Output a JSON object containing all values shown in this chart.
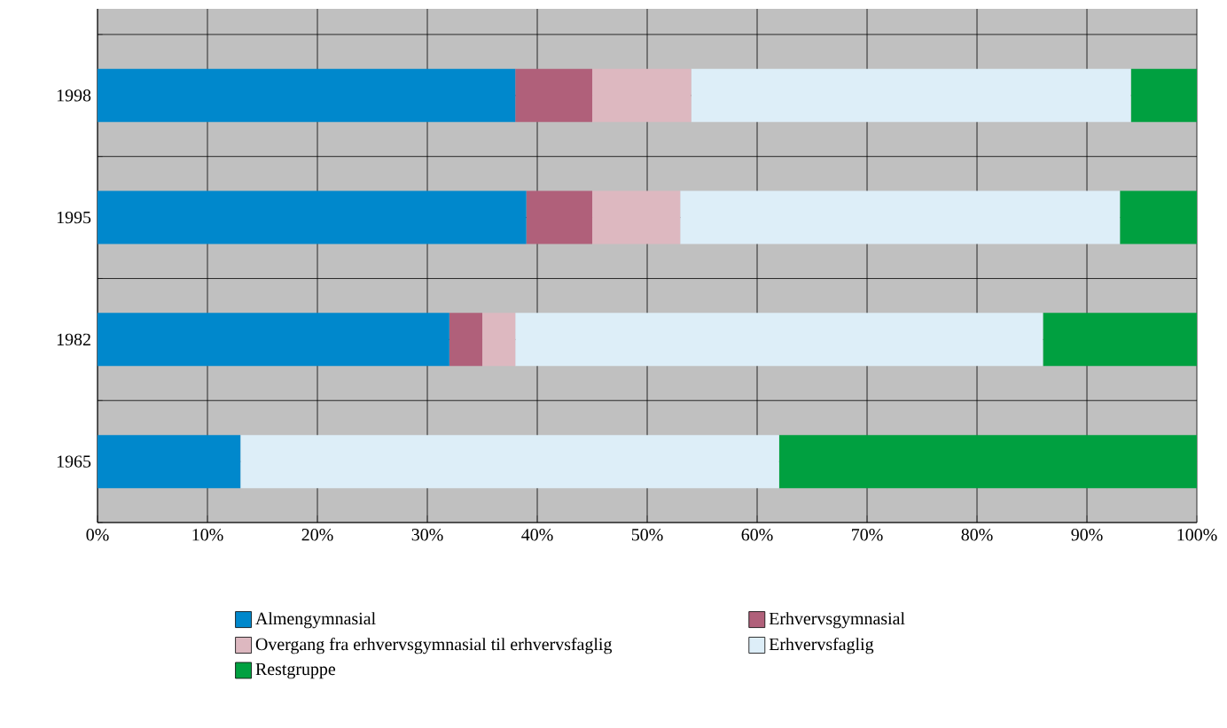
{
  "chart_data": {
    "type": "bar",
    "orientation": "horizontal",
    "stacked": true,
    "categories": [
      "1998",
      "1995",
      "1982",
      "1965"
    ],
    "series": [
      {
        "name": "Almengymnasial",
        "color": "#0088cc",
        "values": [
          38,
          39,
          32,
          13
        ]
      },
      {
        "name": "Erhvervsgymnasial",
        "color": "#b0607a",
        "values": [
          7,
          6,
          3,
          0
        ]
      },
      {
        "name": "Overgang  fra erhvervsgymnasial til erhvervsfaglig",
        "color": "#ddb8c0",
        "values": [
          9,
          8,
          3,
          0
        ]
      },
      {
        "name": "Erhvervsfaglig",
        "color": "#ddeef8",
        "values": [
          40,
          40,
          48,
          49
        ]
      },
      {
        "name": "Restgruppe",
        "color": "#00a040",
        "values": [
          6,
          7,
          14,
          38
        ]
      }
    ],
    "xlim": [
      0,
      100
    ],
    "xticks": [
      {
        "value": 0,
        "label": "0%"
      },
      {
        "value": 10,
        "label": "10%"
      },
      {
        "value": 20,
        "label": "20%"
      },
      {
        "value": 30,
        "label": "30%"
      },
      {
        "value": 40,
        "label": "40%"
      },
      {
        "value": 50,
        "label": "50%"
      },
      {
        "value": 60,
        "label": "60%"
      },
      {
        "value": 70,
        "label": "70%"
      },
      {
        "value": 80,
        "label": "80%"
      },
      {
        "value": 90,
        "label": "90%"
      },
      {
        "value": 100,
        "label": "100%"
      }
    ],
    "grid": true,
    "legend": "bottom"
  }
}
